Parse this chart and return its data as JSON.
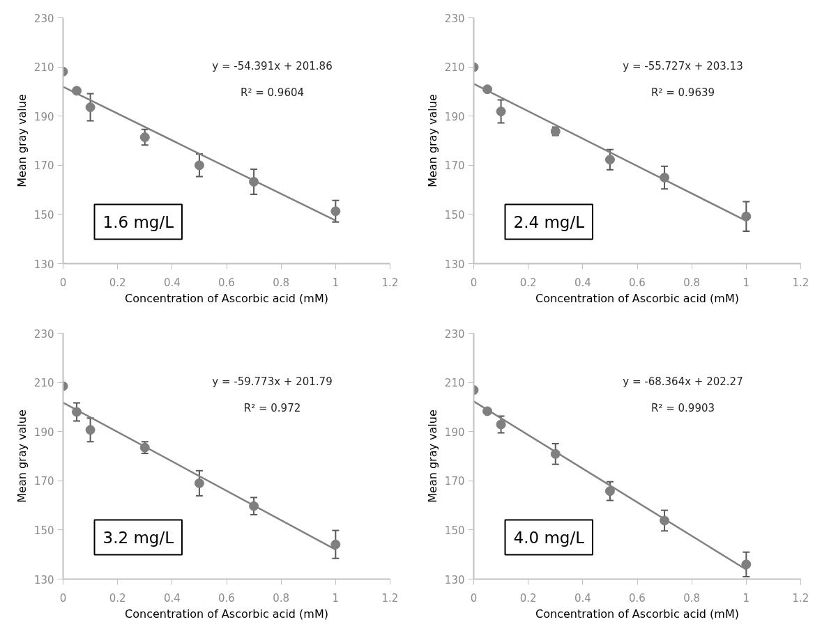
{
  "chart_data": [
    {
      "type": "scatter",
      "xlabel": "Concentration of Ascorbic acid (mM)",
      "ylabel": "Mean gray value",
      "xlim": [
        0,
        1.2
      ],
      "ylim": [
        130,
        230
      ],
      "xticks": [
        0,
        0.2,
        0.4,
        0.6,
        0.8,
        1,
        1.2
      ],
      "yticks": [
        130,
        150,
        170,
        190,
        210,
        230
      ],
      "grid": false,
      "annotations": [
        "y = -54.391x + 201.86",
        "R² = 0.9604",
        "1.6 mg/L"
      ],
      "series": [
        {
          "marker": "circle",
          "color": "#7f7f7f",
          "x": [
            0,
            0.05,
            0.1,
            0.3,
            0.5,
            0.7,
            1
          ],
          "values": [
            208.1,
            200.3,
            193.6,
            181.4,
            170.0,
            163.3,
            151.3
          ],
          "errors": [
            null,
            1,
            5.5,
            3.2,
            4.6,
            5.1,
            4.4
          ]
        },
        {
          "type": "line",
          "line_style": "solid",
          "color": "#808080",
          "x": [
            0,
            1
          ],
          "values": [
            201.9,
            147.5
          ]
        }
      ]
    },
    {
      "type": "scatter",
      "xlabel": "Concentration of Ascorbic acid (mM)",
      "ylabel": "Mean gray value",
      "xlim": [
        0,
        1.2
      ],
      "ylim": [
        130,
        230
      ],
      "xticks": [
        0,
        0.2,
        0.4,
        0.6,
        0.8,
        1,
        1.2
      ],
      "yticks": [
        130,
        150,
        170,
        190,
        210,
        230
      ],
      "grid": false,
      "annotations": [
        "y = -55.727x + 203.13",
        "R² = 0.9639",
        "2.4 mg/L"
      ],
      "series": [
        {
          "marker": "circle",
          "color": "#7f7f7f",
          "x": [
            0,
            0.05,
            0.1,
            0.3,
            0.5,
            0.7,
            1
          ],
          "values": [
            209.9,
            200.9,
            191.9,
            183.8,
            172.3,
            165.0,
            149.2
          ],
          "errors": [
            null,
            null,
            4.7,
            1.7,
            4.1,
            4.6,
            6.0
          ]
        },
        {
          "type": "line",
          "line_style": "solid",
          "color": "#808080",
          "x": [
            0,
            1
          ],
          "values": [
            203.1,
            147.4
          ]
        }
      ]
    },
    {
      "type": "scatter",
      "xlabel": "Concentration of Ascorbic acid (mM)",
      "ylabel": "Mean gray value",
      "xlim": [
        0,
        1.2
      ],
      "ylim": [
        130,
        230
      ],
      "xticks": [
        0,
        0.2,
        0.4,
        0.6,
        0.8,
        1,
        1.2
      ],
      "yticks": [
        130,
        150,
        170,
        190,
        210,
        230
      ],
      "grid": false,
      "annotations": [
        "y = -59.773x + 201.79",
        "R² = 0.972",
        "3.2 mg/L"
      ],
      "series": [
        {
          "marker": "circle",
          "color": "#7f7f7f",
          "x": [
            0,
            0.05,
            0.1,
            0.3,
            0.5,
            0.7,
            1
          ],
          "values": [
            208.5,
            198.0,
            190.7,
            183.5,
            169.0,
            159.7,
            144.1
          ],
          "errors": [
            null,
            3.7,
            4.8,
            2.4,
            5.1,
            3.5,
            5.7
          ]
        },
        {
          "type": "line",
          "line_style": "solid",
          "color": "#808080",
          "x": [
            0,
            1
          ],
          "values": [
            201.8,
            142.0
          ]
        }
      ]
    },
    {
      "type": "scatter",
      "xlabel": "Concentration of Ascorbic acid (mM)",
      "ylabel": "Mean gray value",
      "xlim": [
        0,
        1.2
      ],
      "ylim": [
        130,
        230
      ],
      "xticks": [
        0,
        0.2,
        0.4,
        0.6,
        0.8,
        1,
        1.2
      ],
      "yticks": [
        130,
        150,
        170,
        190,
        210,
        230
      ],
      "grid": false,
      "annotations": [
        "y = -68.364x + 202.27",
        "R² = 0.9903",
        "4.0 mg/L"
      ],
      "series": [
        {
          "marker": "circle",
          "color": "#7f7f7f",
          "x": [
            0,
            0.05,
            0.1,
            0.3,
            0.5,
            0.7,
            1
          ],
          "values": [
            206.9,
            198.3,
            192.9,
            180.9,
            165.8,
            153.8,
            136.0
          ],
          "errors": [
            null,
            null,
            3.4,
            4.2,
            3.8,
            4.2,
            5.0
          ]
        },
        {
          "type": "line",
          "line_style": "solid",
          "color": "#808080",
          "x": [
            0,
            1
          ],
          "values": [
            202.3,
            133.9
          ]
        }
      ]
    }
  ]
}
